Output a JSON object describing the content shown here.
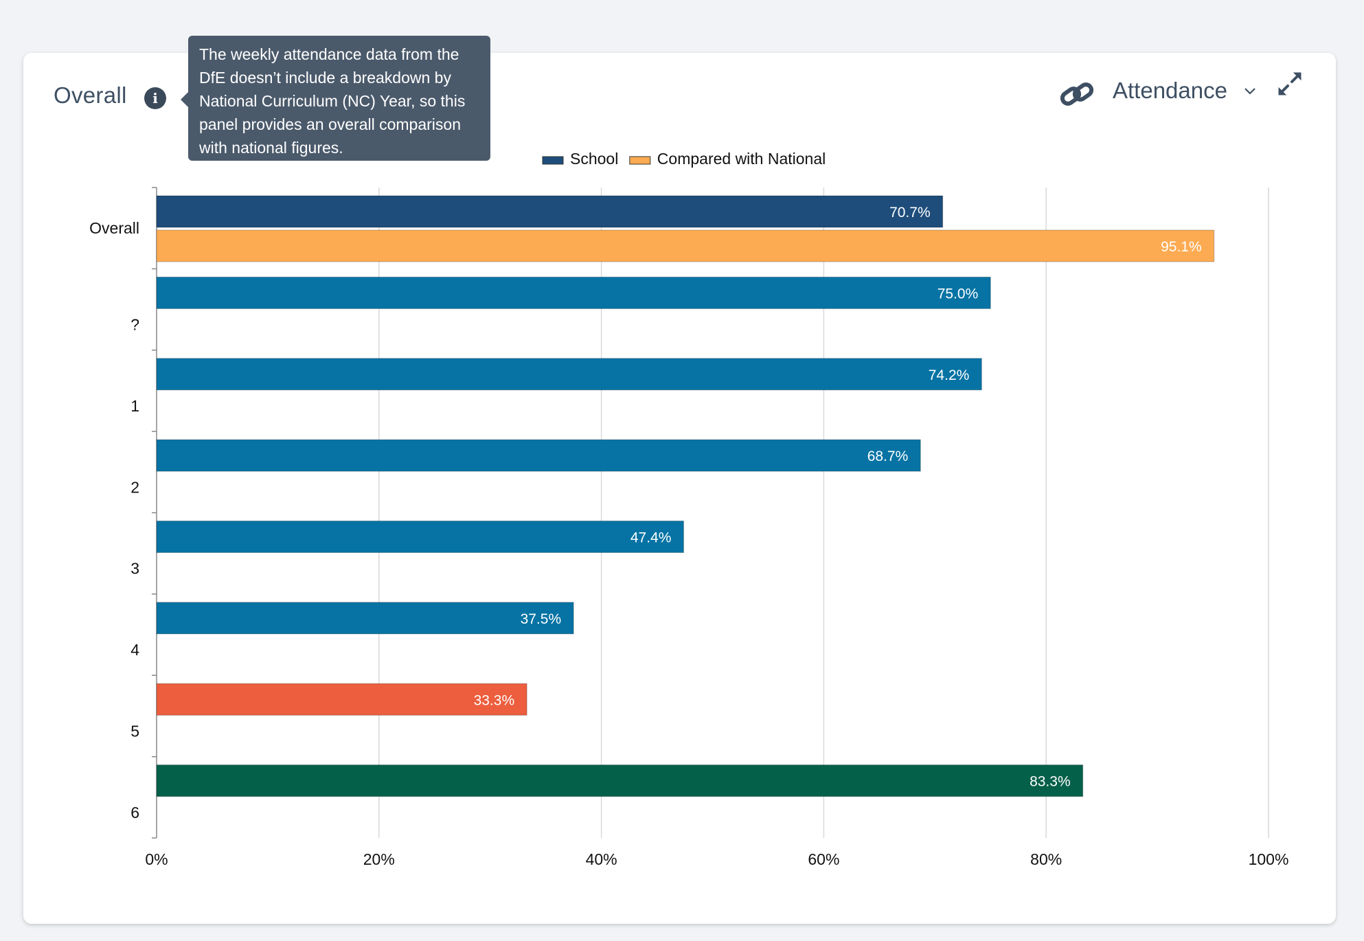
{
  "panel": {
    "title": "Overall",
    "tooltip": "The weekly attendance data from the DfE doesn’t include a breakdown by National Curriculum (NC) Year, so this panel provides an overall comparison with national figures.",
    "dataset_label": "Attendance"
  },
  "icons": [
    "info-icon",
    "link-icon",
    "chevron-down-icon",
    "expand-icon"
  ],
  "chart_data": {
    "type": "bar",
    "orientation": "horizontal",
    "xlim": [
      0,
      100
    ],
    "xticks": [
      "0%",
      "20%",
      "40%",
      "60%",
      "80%",
      "100%"
    ],
    "legend": [
      {
        "name": "School",
        "color": "#1e4d7b"
      },
      {
        "name": "Compared with National",
        "color": "#fdab52"
      }
    ],
    "legend_position": "top-center",
    "grid": true,
    "categories": [
      "Overall",
      "?",
      "1",
      "2",
      "3",
      "4",
      "5",
      "6"
    ],
    "bars": [
      {
        "category": "Overall",
        "series": "School",
        "value": 70.7,
        "label": "70.7%",
        "color": "#1e4d7b"
      },
      {
        "category": "Overall",
        "series": "Compared with National",
        "value": 95.1,
        "label": "95.1%",
        "color": "#fdab52"
      },
      {
        "category": "?",
        "series": "School",
        "value": 75.0,
        "label": "75.0%",
        "color": "#0673a4"
      },
      {
        "category": "1",
        "series": "School",
        "value": 74.2,
        "label": "74.2%",
        "color": "#0673a4"
      },
      {
        "category": "2",
        "series": "School",
        "value": 68.7,
        "label": "68.7%",
        "color": "#0673a4"
      },
      {
        "category": "3",
        "series": "School",
        "value": 47.4,
        "label": "47.4%",
        "color": "#0673a4"
      },
      {
        "category": "4",
        "series": "School",
        "value": 37.5,
        "label": "37.5%",
        "color": "#0673a4"
      },
      {
        "category": "5",
        "series": "School",
        "value": 33.3,
        "label": "33.3%",
        "color": "#ec5e3e"
      },
      {
        "category": "6",
        "series": "School",
        "value": 83.3,
        "label": "83.3%",
        "color": "#05604a"
      }
    ]
  }
}
